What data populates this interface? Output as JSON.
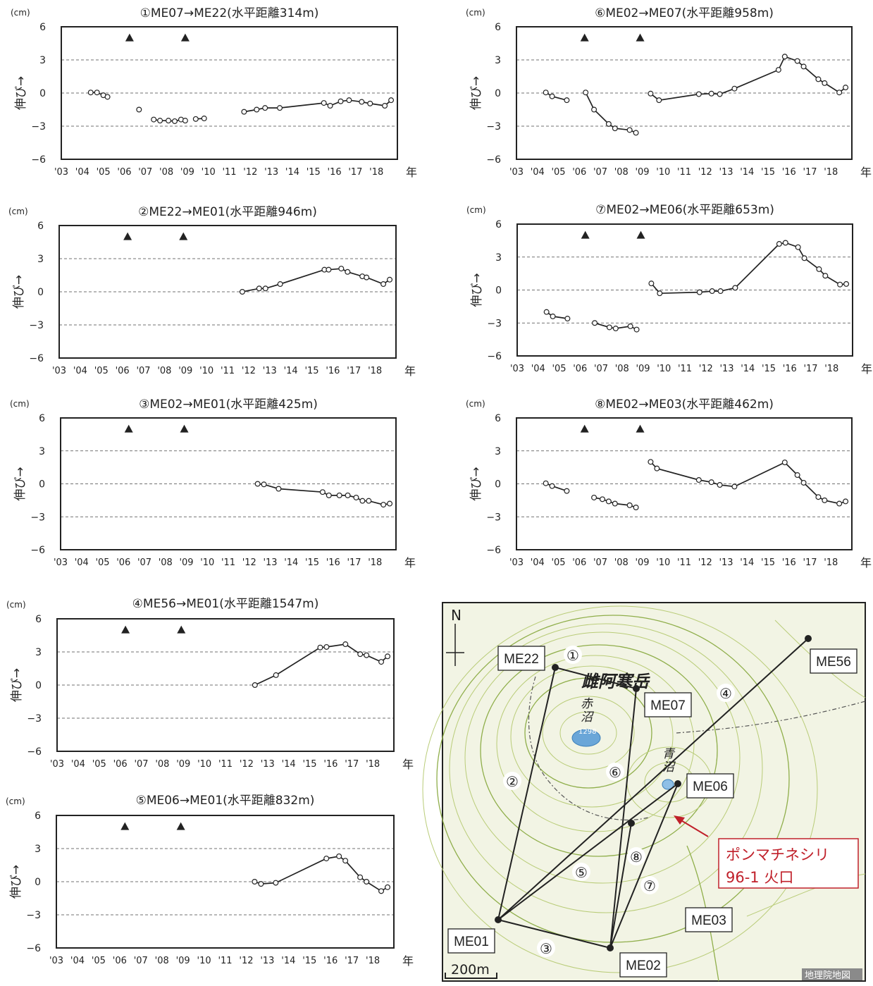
{
  "ticks_x": [
    "'03",
    "'04",
    "'05",
    "'06",
    "'07",
    "'08",
    "'09",
    "'10",
    "'11",
    "'12",
    "'13",
    "'14",
    "'15",
    "'16",
    "'17",
    "'18"
  ],
  "ticks_y": [
    "6",
    "3",
    "0",
    "−3",
    "−6"
  ],
  "unit": "(cm)",
  "ylabel": "伸び→",
  "xunit": "年",
  "chart_data": [
    {
      "type": "line",
      "title": "①ME07→ME22(水平距離314m)",
      "ylim": [
        -6,
        6
      ],
      "xlim": [
        2003,
        2019
      ],
      "events": [
        2006.25,
        2008.9
      ],
      "series": [
        [
          [
            2004.4,
            0.05
          ],
          [
            2004.7,
            0.05
          ],
          [
            2005.0,
            -0.2
          ],
          [
            2005.2,
            -0.35
          ]
        ],
        [
          [
            2006.7,
            -1.5
          ]
        ],
        [
          [
            2007.4,
            -2.4
          ],
          [
            2007.7,
            -2.5
          ],
          [
            2008.1,
            -2.5
          ],
          [
            2008.4,
            -2.55
          ],
          [
            2008.7,
            -2.4
          ],
          [
            2008.9,
            -2.5
          ]
        ],
        [
          [
            2009.4,
            -2.35
          ],
          [
            2009.8,
            -2.3
          ]
        ],
        [
          [
            2011.7,
            -1.7
          ],
          [
            2012.3,
            -1.5
          ],
          [
            2012.7,
            -1.35
          ],
          [
            2013.4,
            -1.35
          ],
          [
            2015.5,
            -0.9
          ],
          [
            2015.8,
            -1.15
          ],
          [
            2016.3,
            -0.75
          ],
          [
            2016.7,
            -0.65
          ],
          [
            2017.3,
            -0.8
          ],
          [
            2017.7,
            -0.95
          ],
          [
            2018.4,
            -1.15
          ],
          [
            2018.7,
            -0.65
          ]
        ]
      ]
    },
    {
      "type": "line",
      "title": "②ME22→ME01(水平距離946m)",
      "ylim": [
        -6,
        6
      ],
      "xlim": [
        2003,
        2019
      ],
      "events": [
        2006.25,
        2008.9
      ],
      "series": [
        [
          [
            2011.7,
            0.0
          ],
          [
            2012.5,
            0.3
          ],
          [
            2012.8,
            0.3
          ],
          [
            2013.5,
            0.7
          ],
          [
            2015.6,
            2.0
          ],
          [
            2015.8,
            2.0
          ],
          [
            2016.4,
            2.1
          ],
          [
            2016.7,
            1.8
          ],
          [
            2017.4,
            1.4
          ],
          [
            2017.6,
            1.3
          ],
          [
            2018.4,
            0.7
          ],
          [
            2018.7,
            1.1
          ]
        ]
      ]
    },
    {
      "type": "line",
      "title": "③ME02→ME01(水平距離425m)",
      "ylim": [
        -6,
        6
      ],
      "xlim": [
        2003,
        2019
      ],
      "events": [
        2006.25,
        2008.9
      ],
      "series": [
        [
          [
            2012.4,
            0.0
          ],
          [
            2012.7,
            -0.05
          ],
          [
            2013.4,
            -0.45
          ],
          [
            2015.5,
            -0.75
          ],
          [
            2015.8,
            -1.05
          ],
          [
            2016.3,
            -1.05
          ],
          [
            2016.7,
            -1.05
          ],
          [
            2017.1,
            -1.25
          ],
          [
            2017.4,
            -1.55
          ],
          [
            2017.7,
            -1.55
          ],
          [
            2018.4,
            -1.9
          ],
          [
            2018.7,
            -1.8
          ]
        ]
      ]
    },
    {
      "type": "line",
      "title": "④ME56→ME01(水平距離1547m)",
      "ylim": [
        -6,
        6
      ],
      "xlim": [
        2003,
        2019
      ],
      "events": [
        2006.25,
        2008.9
      ],
      "series": [
        [
          [
            2012.4,
            0.0
          ],
          [
            2013.4,
            0.9
          ],
          [
            2015.5,
            3.4
          ],
          [
            2015.8,
            3.45
          ],
          [
            2016.7,
            3.7
          ],
          [
            2017.4,
            2.8
          ],
          [
            2017.7,
            2.7
          ],
          [
            2018.4,
            2.1
          ],
          [
            2018.7,
            2.6
          ]
        ]
      ]
    },
    {
      "type": "line",
      "title": "⑤ME06→ME01(水平距離832m)",
      "ylim": [
        -6,
        6
      ],
      "xlim": [
        2003,
        2019
      ],
      "events": [
        2006.25,
        2008.9
      ],
      "series": [
        [
          [
            2012.4,
            0.0
          ],
          [
            2012.7,
            -0.2
          ],
          [
            2013.4,
            -0.1
          ],
          [
            2015.8,
            2.1
          ],
          [
            2016.4,
            2.3
          ],
          [
            2016.7,
            1.9
          ],
          [
            2017.4,
            0.4
          ],
          [
            2017.7,
            0.0
          ],
          [
            2018.4,
            -0.85
          ],
          [
            2018.7,
            -0.5
          ]
        ]
      ]
    },
    {
      "type": "line",
      "title": "⑥ME02→ME07(水平距離958m)",
      "ylim": [
        -6,
        6
      ],
      "xlim": [
        2003,
        2019
      ],
      "events": [
        2006.25,
        2008.9
      ],
      "series": [
        [
          [
            2004.4,
            0.05
          ],
          [
            2004.7,
            -0.3
          ],
          [
            2005.4,
            -0.65
          ]
        ],
        [
          [
            2006.3,
            0.05
          ],
          [
            2006.7,
            -1.5
          ],
          [
            2007.4,
            -2.8
          ],
          [
            2007.7,
            -3.2
          ],
          [
            2008.4,
            -3.35
          ],
          [
            2008.7,
            -3.6
          ]
        ],
        [
          [
            2009.4,
            -0.05
          ],
          [
            2009.8,
            -0.65
          ],
          [
            2011.7,
            -0.1
          ],
          [
            2012.3,
            -0.05
          ],
          [
            2012.7,
            -0.1
          ],
          [
            2013.4,
            0.4
          ],
          [
            2015.5,
            2.1
          ],
          [
            2015.8,
            3.3
          ],
          [
            2016.4,
            2.9
          ],
          [
            2016.7,
            2.4
          ],
          [
            2017.4,
            1.25
          ],
          [
            2017.7,
            0.9
          ],
          [
            2018.4,
            0.05
          ],
          [
            2018.7,
            0.5
          ]
        ]
      ]
    },
    {
      "type": "line",
      "title": "⑦ME02→ME06(水平距離653m)",
      "ylim": [
        -6,
        6
      ],
      "xlim": [
        2003,
        2019
      ],
      "events": [
        2006.25,
        2008.9
      ],
      "series": [
        [
          [
            2004.4,
            -2.0
          ],
          [
            2004.7,
            -2.4
          ],
          [
            2005.4,
            -2.6
          ]
        ],
        [
          [
            2006.7,
            -3.0
          ],
          [
            2007.4,
            -3.4
          ],
          [
            2007.7,
            -3.5
          ],
          [
            2008.4,
            -3.3
          ],
          [
            2008.7,
            -3.6
          ]
        ],
        [
          [
            2009.4,
            0.6
          ],
          [
            2009.8,
            -0.3
          ],
          [
            2011.7,
            -0.2
          ],
          [
            2012.3,
            -0.1
          ],
          [
            2012.7,
            -0.1
          ],
          [
            2013.4,
            0.2
          ],
          [
            2015.5,
            4.2
          ],
          [
            2015.8,
            4.3
          ],
          [
            2016.4,
            3.9
          ],
          [
            2016.7,
            2.9
          ],
          [
            2017.4,
            1.9
          ],
          [
            2017.7,
            1.3
          ],
          [
            2018.4,
            0.5
          ],
          [
            2018.7,
            0.55
          ]
        ]
      ]
    },
    {
      "type": "line",
      "title": "⑧ME02→ME03(水平距離462m)",
      "ylim": [
        -6,
        6
      ],
      "xlim": [
        2003,
        2019
      ],
      "events": [
        2006.25,
        2008.9
      ],
      "series": [
        [
          [
            2004.4,
            0.05
          ],
          [
            2004.7,
            -0.2
          ],
          [
            2005.4,
            -0.65
          ]
        ],
        [
          [
            2006.7,
            -1.25
          ],
          [
            2007.1,
            -1.4
          ],
          [
            2007.4,
            -1.6
          ],
          [
            2007.7,
            -1.8
          ],
          [
            2008.4,
            -1.95
          ],
          [
            2008.7,
            -2.15
          ]
        ],
        [
          [
            2009.4,
            2.0
          ],
          [
            2009.7,
            1.4
          ],
          [
            2011.7,
            0.35
          ],
          [
            2012.3,
            0.15
          ],
          [
            2012.7,
            -0.1
          ],
          [
            2013.4,
            -0.25
          ],
          [
            2015.8,
            1.95
          ],
          [
            2016.4,
            0.8
          ],
          [
            2016.7,
            0.1
          ],
          [
            2017.4,
            -1.2
          ],
          [
            2017.7,
            -1.5
          ],
          [
            2018.4,
            -1.8
          ],
          [
            2018.7,
            -1.6
          ]
        ]
      ]
    }
  ],
  "map": {
    "stations": [
      {
        "id": "ME22"
      },
      {
        "id": "ME07"
      },
      {
        "id": "ME56"
      },
      {
        "id": "ME06"
      },
      {
        "id": "ME03"
      },
      {
        "id": "ME01"
      },
      {
        "id": "ME02"
      }
    ],
    "baselines": [
      {
        "label": "①"
      },
      {
        "label": "②"
      },
      {
        "label": "③"
      },
      {
        "label": "④"
      },
      {
        "label": "⑤"
      },
      {
        "label": "⑥"
      },
      {
        "label": "⑦"
      },
      {
        "label": "⑧"
      }
    ],
    "north": "N",
    "peak_name": "雌阿寒岳",
    "akanuma": "赤沼",
    "aonuma": "青沼",
    "elev_small": "1298",
    "crater_label_1": "ポンマチネシリ",
    "crater_label_2": "96-1 火口",
    "scale": "200m",
    "credit": "地理院地図",
    "crater_color": "#c0202a"
  }
}
